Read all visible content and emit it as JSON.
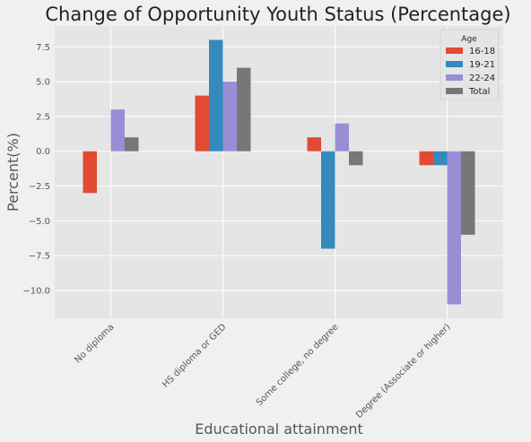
{
  "chart_data": {
    "type": "bar",
    "title": "Change of Opportunity Youth Status (Percentage)",
    "xlabel": "Educational attainment",
    "ylabel": "Percent(%)",
    "categories": [
      "No diploma",
      "HS diploma or GED",
      "Some college, no degree",
      "Degree (Associate or higher)"
    ],
    "series": [
      {
        "name": "16-18",
        "color": "#e24a33",
        "values": [
          -3,
          4,
          1,
          -1
        ]
      },
      {
        "name": "19-21",
        "color": "#348abd",
        "values": [
          0,
          8,
          -7,
          -1
        ]
      },
      {
        "name": "22-24",
        "color": "#988ed5",
        "values": [
          3,
          5,
          2,
          -11
        ]
      },
      {
        "name": "Total",
        "color": "#777777",
        "values": [
          1,
          6,
          -1,
          -6
        ]
      }
    ],
    "yticks": [
      -10.0,
      -7.5,
      -5.0,
      -2.5,
      0.0,
      2.5,
      5.0,
      7.5
    ],
    "ytick_labels": [
      "−10.0",
      "−7.5",
      "−5.0",
      "−2.5",
      "0.0",
      "2.5",
      "5.0",
      "7.5"
    ],
    "ylim": [
      -12,
      9
    ],
    "grid": true,
    "legend": {
      "title": "Age",
      "placement": "top-right"
    }
  }
}
